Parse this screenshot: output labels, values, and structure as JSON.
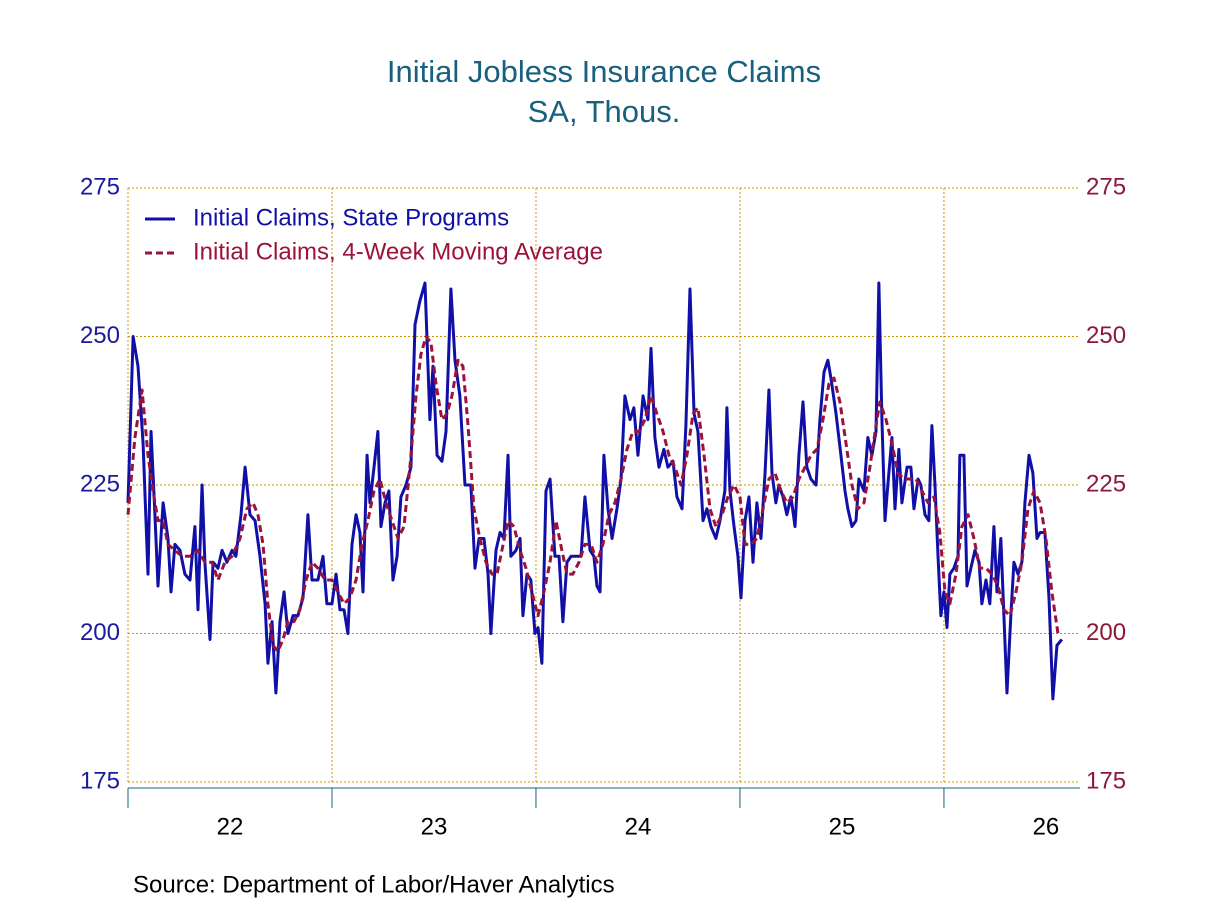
{
  "chart_data": {
    "type": "line",
    "title": "Initial Jobless Insurance Claims",
    "subtitle": "SA, Thous.",
    "source": "Source:  Department of Labor/Haver Analytics",
    "xlim": [
      2022,
      2026.667
    ],
    "ylim": [
      175,
      275
    ],
    "yticks": [
      175,
      200,
      225,
      250,
      275
    ],
    "y2lim": [
      175,
      275
    ],
    "y2ticks": [
      175,
      200,
      225,
      250,
      275
    ],
    "xticks": [
      {
        "value": 2022.5,
        "label": "22"
      },
      {
        "value": 2023.5,
        "label": "23"
      },
      {
        "value": 2024.5,
        "label": "24"
      },
      {
        "value": 2025.5,
        "label": "25"
      },
      {
        "value": 2026.5,
        "label": "26"
      }
    ],
    "xminor_ticks": [
      2022,
      2023,
      2024,
      2025,
      2026
    ],
    "grid": true,
    "legend": "top-left",
    "series": [
      {
        "name": "Initial Claims, State Programs",
        "color": "#1010a8",
        "style": "solid",
        "x": [
          2022.0,
          2022.025,
          2022.049,
          2022.074,
          2022.098,
          2022.113,
          2022.132,
          2022.147,
          2022.172,
          2022.196,
          2022.211,
          2022.23,
          2022.255,
          2022.279,
          2022.304,
          2022.328,
          2022.343,
          2022.363,
          2022.377,
          2022.402,
          2022.417,
          2022.441,
          2022.461,
          2022.485,
          2022.51,
          2022.529,
          2022.554,
          2022.574,
          2022.598,
          2022.623,
          2022.647,
          2022.672,
          2022.686,
          2022.706,
          2022.725,
          2022.745,
          2022.765,
          2022.784,
          2022.809,
          2022.833,
          2022.858,
          2022.882,
          2022.902,
          2022.931,
          2022.956,
          2022.975,
          2023.0,
          2023.02,
          2023.039,
          2023.059,
          2023.078,
          2023.098,
          2023.118,
          2023.137,
          2023.152,
          2023.172,
          2023.186,
          2023.206,
          2023.225,
          2023.24,
          2023.26,
          2023.279,
          2023.299,
          2023.319,
          2023.338,
          2023.363,
          2023.387,
          2023.407,
          2023.431,
          2023.456,
          2023.48,
          2023.495,
          2023.515,
          2023.539,
          2023.559,
          2023.583,
          2023.603,
          2023.627,
          2023.652,
          2023.681,
          2023.701,
          2023.721,
          2023.745,
          2023.765,
          2023.779,
          2023.804,
          2023.824,
          2023.843,
          2023.863,
          2023.877,
          2023.902,
          2023.922,
          2023.936,
          2023.956,
          2023.975,
          2023.995,
          2024.01,
          2024.029,
          2024.049,
          2024.069,
          2024.093,
          2024.113,
          2024.132,
          2024.152,
          2024.172,
          2024.196,
          2024.221,
          2024.24,
          2024.265,
          2024.284,
          2024.299,
          2024.314,
          2024.333,
          2024.353,
          2024.373,
          2024.397,
          2024.417,
          2024.436,
          2024.461,
          2024.48,
          2024.5,
          2024.525,
          2024.549,
          2024.564,
          2024.583,
          2024.603,
          2024.627,
          2024.647,
          2024.672,
          2024.691,
          2024.716,
          2024.735,
          2024.755,
          2024.775,
          2024.794,
          2024.819,
          2024.838,
          2024.858,
          2024.882,
          2024.902,
          2024.926,
          2024.936,
          2024.951,
          2024.971,
          2024.99,
          2025.005,
          2025.025,
          2025.044,
          2025.064,
          2025.083,
          2025.103,
          2025.123,
          2025.142,
          2025.157,
          2025.176,
          2025.191,
          2025.211,
          2025.23,
          2025.25,
          2025.27,
          2025.289,
          2025.309,
          2025.328,
          2025.348,
          2025.373,
          2025.392,
          2025.412,
          2025.431,
          2025.446,
          2025.471,
          2025.495,
          2025.515,
          2025.529,
          2025.549,
          2025.569,
          2025.583,
          2025.608,
          2025.627,
          2025.647,
          2025.667,
          2025.681,
          2025.696,
          2025.711,
          2025.725,
          2025.745,
          2025.76,
          2025.779,
          2025.794,
          2025.819,
          2025.838,
          2025.853,
          2025.873,
          2025.887,
          2025.907,
          2025.926,
          2025.941,
          2025.956,
          2025.971,
          2025.985,
          2026.0,
          2026.015,
          2026.029,
          2026.049,
          2026.069,
          2026.078,
          2026.098,
          2026.113,
          2026.132,
          2026.152,
          2026.172,
          2026.186,
          2026.206,
          2026.225,
          2026.245,
          2026.26,
          2026.279,
          2026.294,
          2026.309,
          2026.328,
          2026.343,
          2026.363,
          2026.382,
          2026.397,
          2026.417,
          2026.436,
          2026.456,
          2026.471,
          2026.495,
          2026.515,
          2026.534,
          2026.554,
          2026.578
        ],
        "values": [
          222,
          250,
          245,
          232,
          210,
          234,
          220,
          208,
          222,
          216,
          207,
          215,
          214,
          210,
          209,
          218,
          204,
          225,
          212,
          199,
          212,
          211,
          214,
          212,
          214,
          213,
          220,
          228,
          220,
          219,
          213,
          205,
          195,
          202,
          190,
          202,
          207,
          200,
          203,
          203,
          206,
          220,
          209,
          209,
          213,
          205,
          205,
          210,
          204,
          204,
          200,
          215,
          220,
          217,
          207,
          230,
          222,
          228,
          234,
          218,
          222,
          224,
          209,
          213,
          223,
          225,
          228,
          252,
          256,
          259,
          236,
          245,
          230,
          229,
          234,
          258,
          246,
          240,
          225,
          225,
          211,
          216,
          216,
          210,
          200,
          214,
          217,
          216,
          230,
          213,
          214,
          216,
          203,
          210,
          209,
          200,
          201,
          195,
          224,
          226,
          213,
          213,
          202,
          212,
          213,
          213,
          213,
          223,
          214,
          213,
          208,
          207,
          230,
          221,
          216,
          221,
          226,
          240,
          236,
          238,
          230,
          240,
          236,
          248,
          233,
          228,
          231,
          228,
          229,
          223,
          221,
          235,
          258,
          237,
          234,
          219,
          221,
          218,
          216,
          219,
          224,
          238,
          224,
          218,
          213,
          206,
          219,
          223,
          212,
          222,
          216,
          227,
          241,
          227,
          222,
          225,
          223,
          220,
          223,
          218,
          230,
          239,
          228,
          226,
          225,
          236,
          244,
          246,
          243,
          237,
          230,
          224,
          221,
          218,
          219,
          226,
          224,
          233,
          230,
          234,
          259,
          236,
          219,
          225,
          233,
          221,
          231,
          222,
          228,
          228,
          221,
          226,
          225,
          220,
          219,
          235,
          225,
          213,
          203,
          207,
          201,
          210,
          211,
          213,
          230,
          230,
          208,
          211,
          214,
          212,
          205,
          209,
          205,
          218,
          207,
          216,
          203,
          190,
          203,
          212,
          210,
          212,
          222,
          230,
          227,
          216,
          217,
          217,
          206,
          189,
          198,
          199
        ]
      },
      {
        "name": "Initial Claims, 4-Week Moving Average",
        "color": "#9c1238",
        "style": "dashed",
        "axis": "y2",
        "x": [
          2022.0,
          2022.034,
          2022.069,
          2022.098,
          2022.123,
          2022.147,
          2022.172,
          2022.196,
          2022.23,
          2022.265,
          2022.304,
          2022.343,
          2022.377,
          2022.412,
          2022.441,
          2022.475,
          2022.51,
          2022.549,
          2022.583,
          2022.613,
          2022.637,
          2022.662,
          2022.686,
          2022.711,
          2022.735,
          2022.76,
          2022.784,
          2022.814,
          2022.843,
          2022.873,
          2022.902,
          2022.931,
          2022.966,
          2023.0,
          2023.029,
          2023.059,
          2023.088,
          2023.118,
          2023.147,
          2023.176,
          2023.206,
          2023.235,
          2023.265,
          2023.294,
          2023.324,
          2023.353,
          2023.382,
          2023.412,
          2023.436,
          2023.461,
          2023.485,
          2023.51,
          2023.539,
          2023.564,
          2023.588,
          2023.618,
          2023.642,
          2023.667,
          2023.696,
          2023.725,
          2023.755,
          2023.784,
          2023.809,
          2023.833,
          2023.863,
          2023.892,
          2023.922,
          2023.951,
          2023.98,
          2024.01,
          2024.039,
          2024.069,
          2024.098,
          2024.127,
          2024.152,
          2024.181,
          2024.211,
          2024.24,
          2024.27,
          2024.299,
          2024.328,
          2024.358,
          2024.387,
          2024.417,
          2024.446,
          2024.475,
          2024.505,
          2024.534,
          2024.564,
          2024.593,
          2024.623,
          2024.652,
          2024.681,
          2024.711,
          2024.74,
          2024.77,
          2024.794,
          2024.824,
          2024.853,
          2024.882,
          2024.912,
          2024.941,
          2024.971,
          2025.0,
          2025.025,
          2025.054,
          2025.083,
          2025.113,
          2025.142,
          2025.172,
          2025.201,
          2025.23,
          2025.26,
          2025.289,
          2025.319,
          2025.348,
          2025.377,
          2025.407,
          2025.436,
          2025.461,
          2025.49,
          2025.52,
          2025.549,
          2025.578,
          2025.608,
          2025.637,
          2025.667,
          2025.686,
          2025.716,
          2025.745,
          2025.775,
          2025.804,
          2025.833,
          2025.863,
          2025.892,
          2025.922,
          2025.951,
          2025.98,
          2026.005,
          2026.029,
          2026.059,
          2026.088,
          2026.118,
          2026.147,
          2026.176,
          2026.206,
          2026.235,
          2026.265,
          2026.294,
          2026.324,
          2026.353,
          2026.382,
          2026.412,
          2026.441,
          2026.471,
          2026.5,
          2026.529,
          2026.559
        ],
        "values": [
          220,
          233,
          241,
          230,
          224,
          219,
          219,
          215,
          214,
          213,
          213,
          214,
          212,
          212,
          209,
          212,
          213,
          216,
          221,
          222,
          220,
          215,
          205,
          198,
          197,
          199,
          202,
          202,
          204,
          209,
          212,
          211,
          209,
          209,
          207,
          205,
          206,
          209,
          215,
          219,
          224,
          226,
          222,
          219,
          216,
          218,
          228,
          240,
          247,
          250,
          249,
          242,
          236,
          237,
          240,
          246,
          245,
          235,
          221,
          216,
          212,
          210,
          210,
          214,
          219,
          218,
          214,
          211,
          207,
          203,
          207,
          212,
          219,
          214,
          210,
          210,
          212,
          215,
          215,
          212,
          215,
          220,
          222,
          226,
          231,
          234,
          234,
          236,
          240,
          237,
          234,
          230,
          228,
          225,
          230,
          237,
          238,
          230,
          221,
          218,
          220,
          223,
          225,
          223,
          215,
          215,
          216,
          221,
          226,
          227,
          224,
          222,
          223,
          226,
          228,
          230,
          231,
          236,
          242,
          243,
          239,
          232,
          225,
          221,
          222,
          228,
          235,
          239,
          236,
          232,
          227,
          226,
          226,
          226,
          224,
          222,
          223,
          217,
          207,
          205,
          210,
          218,
          220,
          216,
          211,
          211,
          210,
          208,
          204,
          203,
          207,
          212,
          221,
          224,
          222,
          216,
          207,
          200
        ]
      }
    ]
  }
}
